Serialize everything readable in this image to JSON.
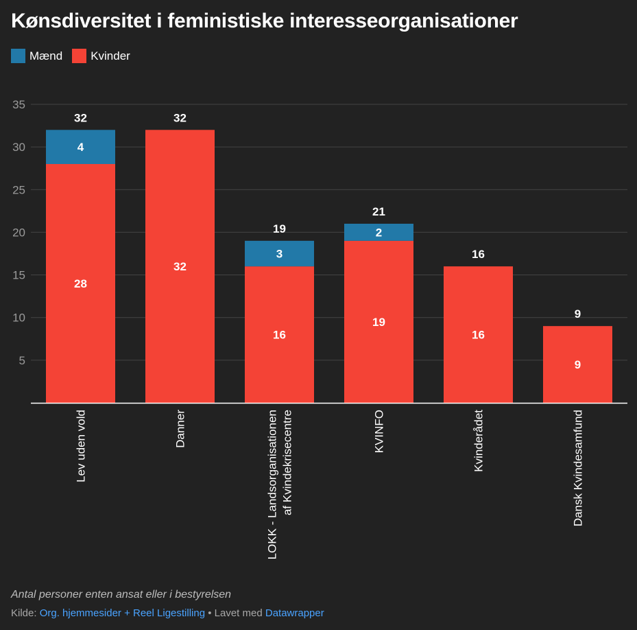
{
  "header": {
    "title": "Kønsdiversitet i feministiske interesseorganisationer"
  },
  "colors": {
    "maend": "#2279a8",
    "kvinder": "#f44336",
    "background": "#222222",
    "grid": "#444444"
  },
  "chart_data": {
    "type": "bar",
    "stacked": true,
    "categories": [
      "Lev uden vold",
      "Danner",
      "LOKK - Landsorganisationen\naf Kvindekrisecentre",
      "KVINFO",
      "Kvinderådet",
      "Dansk Kvindesamfund"
    ],
    "series": [
      {
        "name": "Kvinder",
        "values": [
          28,
          32,
          16,
          19,
          16,
          9
        ],
        "color": "#f44336"
      },
      {
        "name": "Mænd",
        "values": [
          4,
          0,
          3,
          2,
          0,
          0
        ],
        "color": "#2279a8"
      }
    ],
    "totals": [
      32,
      32,
      19,
      21,
      16,
      9
    ],
    "ylim": [
      0,
      35
    ],
    "yticks": [
      5,
      10,
      15,
      20,
      25,
      30,
      35
    ],
    "grid": true,
    "legend_placement": "top-left",
    "legend": [
      "Mænd",
      "Kvinder"
    ],
    "xlabel": "",
    "ylabel": ""
  },
  "footer": {
    "note": "Antal personer enten ansat eller i bestyrelsen",
    "source_prefix": "Kilde: ",
    "source_link": "Org. hjemmesider + Reel Ligestilling",
    "made_with": " • Lavet med ",
    "tool_link": "Datawrapper"
  }
}
